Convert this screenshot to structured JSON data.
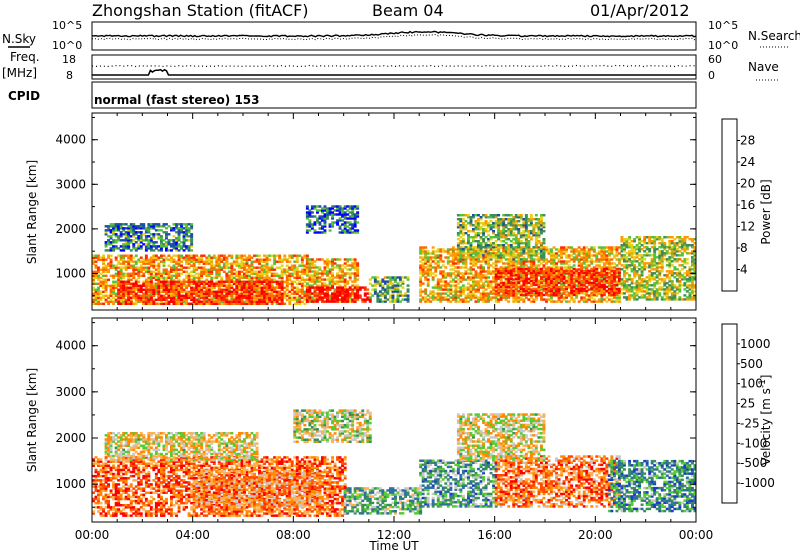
{
  "header": {
    "station": "Zhongshan Station (fitACF)",
    "beam": "Beam 04",
    "date": "01/Apr/2012"
  },
  "top_panels": {
    "nsky_label": "N.Sky",
    "nsky_ticks": [
      "10^5",
      "10^0"
    ],
    "nsearch_label": "N.Search",
    "nsearch_ticks": [
      "10^5",
      "10^0"
    ],
    "freq_label": "Freq.",
    "freq_unit": "[MHz]",
    "freq_ticks": [
      "18",
      "8"
    ],
    "nave_label": "Nave",
    "nave_ticks": [
      "60",
      "0"
    ],
    "cpid_label": "CPID",
    "cpid_value": "normal (fast stereo) 153"
  },
  "colors": {
    "power_scale": [
      "#0000ff",
      "#1e4fa8",
      "#3d8c5a",
      "#56c23a",
      "#e6d21e",
      "#ff9a00",
      "#ff6a00",
      "#ff2a00",
      "#ff0000"
    ],
    "velocity_scale": [
      "#ff0000",
      "#ff4a00",
      "#ff8a00",
      "#ffb050",
      "#c8c8c8",
      "#55cc33",
      "#3a8e5a",
      "#2e6fa0",
      "#1a3cc8"
    ]
  },
  "chart_data": [
    {
      "type": "heatmap",
      "name": "power",
      "ylabel": "Slant Range [km]",
      "yticks": [
        "1000",
        "2000",
        "3000",
        "4000"
      ],
      "xlim": [
        0,
        24
      ],
      "ylim": [
        180,
        4600
      ],
      "colorbar_label": "Power [dB]",
      "colorbar_ticks": [
        "4",
        "8",
        "12",
        "16",
        "20",
        "24",
        "28"
      ],
      "colorbar_range": [
        0,
        32
      ],
      "regions": [
        {
          "t0": 0.0,
          "t1": 8.5,
          "r0": 300,
          "r1": 1400,
          "level": 0.62
        },
        {
          "t0": 1.0,
          "t1": 7.5,
          "r0": 300,
          "r1": 800,
          "level": 0.85
        },
        {
          "t0": 8.5,
          "t1": 10.5,
          "r0": 350,
          "r1": 1300,
          "level": 0.6
        },
        {
          "t0": 8.5,
          "t1": 11.0,
          "r0": 350,
          "r1": 700,
          "level": 0.95
        },
        {
          "t0": 11.0,
          "t1": 12.5,
          "r0": 350,
          "r1": 900,
          "level": 0.35
        },
        {
          "t0": 13.0,
          "t1": 21.0,
          "r0": 350,
          "r1": 1600,
          "level": 0.6
        },
        {
          "t0": 16.0,
          "t1": 21.0,
          "r0": 500,
          "r1": 1100,
          "level": 0.85
        },
        {
          "t0": 14.5,
          "t1": 18.0,
          "r0": 1300,
          "r1": 2300,
          "level": 0.4
        },
        {
          "t0": 21.0,
          "t1": 24.0,
          "r0": 400,
          "r1": 1800,
          "level": 0.45
        },
        {
          "t0": 8.5,
          "t1": 10.5,
          "r0": 1900,
          "r1": 2500,
          "level": 0.2
        },
        {
          "t0": 0.5,
          "t1": 4.0,
          "r0": 1500,
          "r1": 2100,
          "level": 0.25
        }
      ]
    },
    {
      "type": "heatmap",
      "name": "velocity",
      "ylabel": "Slant Range [km]",
      "xlabel": "Time UT",
      "xticks": [
        "00:00",
        "04:00",
        "08:00",
        "12:00",
        "16:00",
        "20:00",
        "00:00"
      ],
      "yticks": [
        "1000",
        "2000",
        "3000",
        "4000"
      ],
      "xlim": [
        0,
        24
      ],
      "ylim": [
        180,
        4600
      ],
      "colorbar_label": "Velocity [m s^-1]",
      "colorbar_ticks": [
        "1000",
        "500",
        "100",
        "25",
        "-25",
        "-100",
        "-500",
        "-1000"
      ],
      "regions": [
        {
          "t0": 0.0,
          "t1": 10.0,
          "r0": 300,
          "r1": 1600,
          "level": 0.2
        },
        {
          "t0": 0.5,
          "t1": 6.5,
          "r0": 1500,
          "r1": 2100,
          "level": 0.45
        },
        {
          "t0": 4.0,
          "t1": 9.0,
          "r0": 500,
          "r1": 1300,
          "level": 0.3
        },
        {
          "t0": 10.0,
          "t1": 13.0,
          "r0": 350,
          "r1": 900,
          "level": 0.65
        },
        {
          "t0": 13.0,
          "t1": 16.0,
          "r0": 500,
          "r1": 1500,
          "level": 0.7
        },
        {
          "t0": 16.0,
          "t1": 21.0,
          "r0": 500,
          "r1": 1600,
          "level": 0.25
        },
        {
          "t0": 20.5,
          "t1": 24.0,
          "r0": 400,
          "r1": 1500,
          "level": 0.75
        },
        {
          "t0": 14.5,
          "t1": 18.0,
          "r0": 1500,
          "r1": 2500,
          "level": 0.45
        },
        {
          "t0": 8.0,
          "t1": 11.0,
          "r0": 1900,
          "r1": 2600,
          "level": 0.5
        }
      ]
    }
  ]
}
